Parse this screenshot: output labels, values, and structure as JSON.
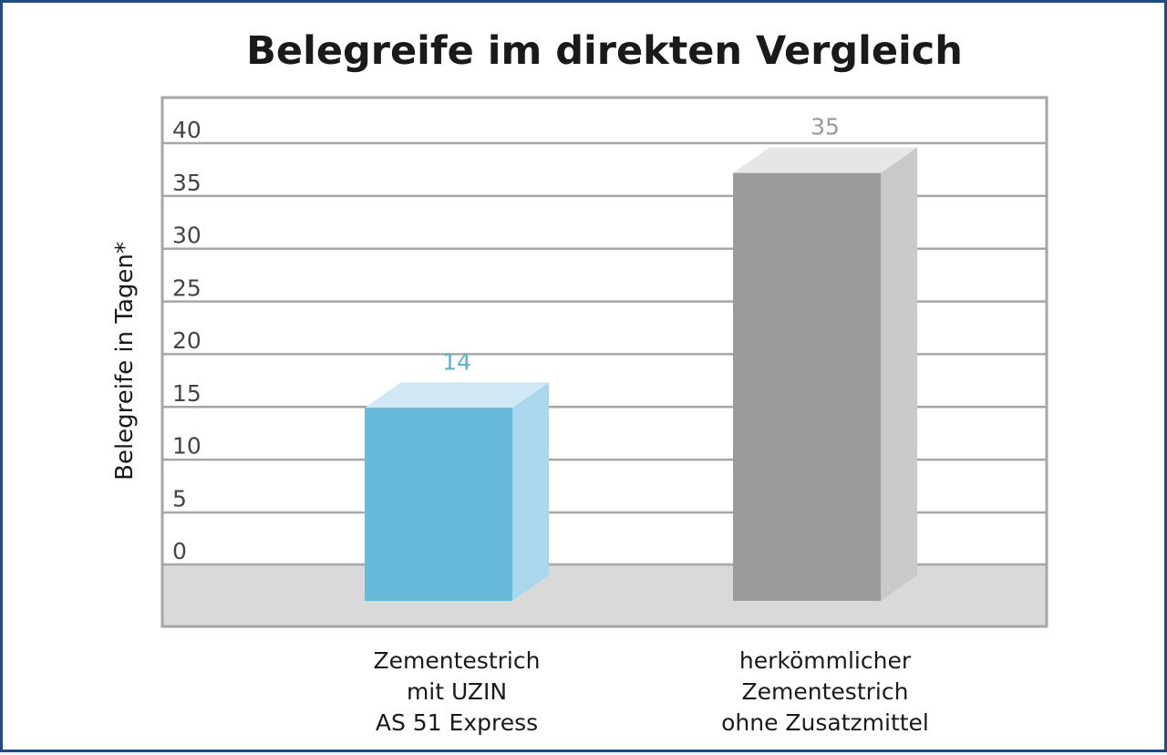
{
  "chart_data": {
    "type": "bar",
    "title": "Belegreife im direkten Vergleich",
    "ylabel": "Belegreife in Tagen*",
    "xlabel": "",
    "ylim": [
      0,
      40
    ],
    "yticks": [
      0,
      5,
      10,
      15,
      20,
      25,
      30,
      35,
      40
    ],
    "grid": true,
    "categories": [
      [
        "Zementestrich",
        "mit UZIN",
        "AS 51 Express"
      ],
      [
        "herkömmlicher",
        "Zementestrich",
        "ohne Zusatzmittel"
      ]
    ],
    "values": [
      14,
      35
    ],
    "data_labels": [
      "14",
      "35"
    ],
    "colors": {
      "bar_front": [
        "#67bad9",
        "#9b9b9b"
      ],
      "bar_side": [
        "#a9d8ec",
        "#c9c9c9"
      ],
      "bar_top": [
        "#cfe8f4",
        "#e6e6e6"
      ],
      "value_label": [
        "#5ab3d1",
        "#999999"
      ],
      "floor": "#d9d9d9",
      "grid": "#a6a6a6",
      "frame_border": "#1f4a86"
    }
  }
}
